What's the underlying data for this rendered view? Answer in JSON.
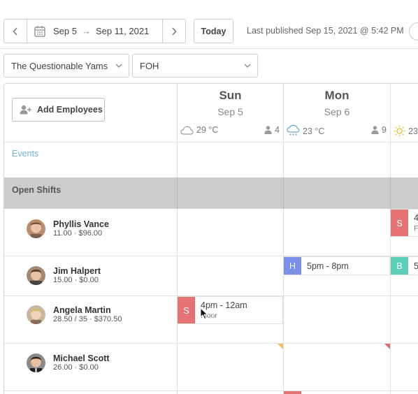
{
  "toolbar": {
    "date_start": "Sep 5",
    "date_end": "Sep 11, 2021",
    "today_label": "Today",
    "published_text": "Last published Sep 15, 2021 @ 5:42 PM"
  },
  "filters": {
    "location": "The Questionable Yams",
    "department": "FOH"
  },
  "grid": {
    "add_employees_label": "Add Employees",
    "events_label": "Events",
    "open_shifts_label": "Open Shifts",
    "days": [
      {
        "name": "Sun",
        "date": "Sep 5",
        "temp": "29 °C",
        "weather_icon": "cloud-icon",
        "count": "4"
      },
      {
        "name": "Mon",
        "date": "Sep 6",
        "temp": "23 °C",
        "weather_icon": "rain-icon",
        "count": "9"
      },
      {
        "name": "",
        "date": "",
        "temp": "23",
        "weather_icon": "sun-icon",
        "count": ""
      }
    ],
    "employees": [
      {
        "name": "Phyllis Vance",
        "meta": "11.00 · $96.00"
      },
      {
        "name": "Jim Halpert",
        "meta": "15.00 · $0.00"
      },
      {
        "name": "Angela Martin",
        "meta": "28.50 / 35 · $370.50"
      },
      {
        "name": "Michael Scott",
        "meta": "26.00 · $0.00"
      }
    ],
    "shifts": {
      "phyllis_tue": {
        "tag": "S",
        "time": "4",
        "sub": "Fl",
        "color": "#e57373"
      },
      "jim_mon": {
        "tag": "H",
        "time": "5pm - 8pm",
        "color": "#7b8fe6"
      },
      "jim_tue": {
        "tag": "B",
        "time": "5",
        "color": "#5ccfb8"
      },
      "angela_sun": {
        "tag": "S",
        "time": "4pm - 12am",
        "sub": "Floor",
        "color": "#e57373"
      }
    }
  },
  "colors": {
    "accent_link": "#6fb3d3",
    "open_shift_band": "#cccccc",
    "role_server": "#e57373",
    "role_host": "#7b8fe6",
    "role_bar": "#5ccfb8",
    "flag_yellow": "#f3c15a",
    "flag_red": "#d97070"
  }
}
